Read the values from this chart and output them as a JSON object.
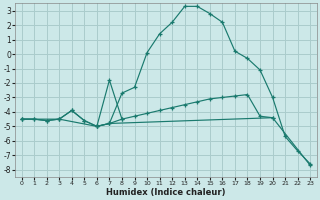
{
  "xlabel": "Humidex (Indice chaleur)",
  "bg_color": "#cce8e8",
  "grid_color": "#aacccc",
  "line_color": "#1a7a6e",
  "xlim": [
    -0.5,
    23.5
  ],
  "ylim": [
    -8.5,
    3.5
  ],
  "xticks": [
    0,
    1,
    2,
    3,
    4,
    5,
    6,
    7,
    8,
    9,
    10,
    11,
    12,
    13,
    14,
    15,
    16,
    17,
    18,
    19,
    20,
    21,
    22,
    23
  ],
  "yticks": [
    -8,
    -7,
    -6,
    -5,
    -4,
    -3,
    -2,
    -1,
    0,
    1,
    2,
    3
  ],
  "series1_x": [
    0,
    1,
    2,
    3,
    4,
    5,
    6,
    7,
    8,
    9,
    10,
    11,
    12,
    13,
    14,
    15,
    16,
    17,
    18,
    19,
    20,
    21,
    22,
    23
  ],
  "series1_y": [
    -4.5,
    -4.5,
    -4.6,
    -4.5,
    -3.9,
    -4.6,
    -5.0,
    -4.8,
    -2.7,
    -2.3,
    0.1,
    1.4,
    2.2,
    3.3,
    3.3,
    2.8,
    2.2,
    0.2,
    -0.3,
    -1.1,
    -3.0,
    -5.7,
    -6.7,
    -7.6
  ],
  "series2_x": [
    0,
    1,
    2,
    3,
    4,
    5,
    6,
    7,
    8,
    9,
    10,
    11,
    12,
    13,
    14,
    15,
    16,
    17,
    18,
    19,
    20
  ],
  "series2_y": [
    -4.5,
    -4.5,
    -4.6,
    -4.5,
    -3.9,
    -4.6,
    -5.0,
    -4.8,
    -4.5,
    -4.3,
    -4.1,
    -3.9,
    -3.7,
    -3.5,
    -3.3,
    -3.1,
    -3.0,
    -2.9,
    -2.8,
    -4.3,
    -4.4
  ],
  "series3_x": [
    6,
    7,
    8
  ],
  "series3_y": [
    -5.0,
    -1.8,
    -4.5
  ],
  "series4_x": [
    0,
    3,
    6,
    7,
    20,
    23
  ],
  "series4_y": [
    -4.5,
    -4.5,
    -5.0,
    -4.8,
    -4.4,
    -7.7
  ]
}
